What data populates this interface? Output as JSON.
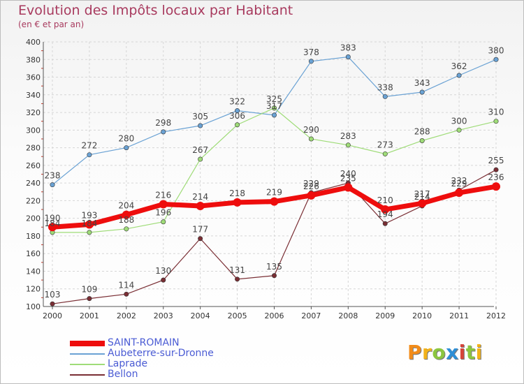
{
  "title": "Evolution des Impôts locaux par Habitant",
  "subtitle": "(en € et par an)",
  "logo": {
    "text": "Proxiti",
    "letters": [
      {
        "ch": "P",
        "color": "#f28c1a"
      },
      {
        "ch": "r",
        "color": "#f2b21a"
      },
      {
        "ch": "o",
        "color": "#8cc63f"
      },
      {
        "ch": "x",
        "color": "#2e8fd6"
      },
      {
        "ch": "i",
        "color": "#d6453a"
      },
      {
        "ch": "t",
        "color": "#8cc63f"
      },
      {
        "ch": "i",
        "color": "#f2b21a"
      }
    ]
  },
  "chart_data": {
    "type": "line",
    "x": [
      "2000",
      "2001",
      "2002",
      "2003",
      "2004",
      "2005",
      "2006",
      "2007",
      "2008",
      "2009",
      "2010",
      "2011",
      "2012"
    ],
    "ylim": [
      100,
      400
    ],
    "ytick_step": 20,
    "grid": true,
    "legend_position": "bottom-left",
    "series": [
      {
        "name": "Aubeterre-sur-Dronne",
        "color": "#6aa2d4",
        "width": 1.2,
        "values": [
          238,
          272,
          280,
          298,
          305,
          322,
          317,
          378,
          383,
          338,
          343,
          362,
          380
        ],
        "labels": [
          "238",
          "272",
          "280",
          "298",
          "305",
          "322",
          "317",
          "378",
          "383",
          "338",
          "343",
          "362",
          "380"
        ]
      },
      {
        "name": "Laprade",
        "color": "#9fdc78",
        "width": 1.2,
        "values": [
          184,
          184,
          188,
          196,
          267,
          306,
          325,
          290,
          283,
          273,
          288,
          300,
          310
        ],
        "labels": [
          "184",
          "184",
          "188",
          "196",
          "267",
          "306",
          "325",
          "290",
          "283",
          "273",
          "288",
          "300",
          "310"
        ]
      },
      {
        "name": "Bellon",
        "color": "#7a2e34",
        "width": 1.2,
        "values": [
          103,
          109,
          114,
          130,
          177,
          131,
          135,
          229,
          240,
          194,
          214,
          232,
          255
        ],
        "labels": [
          "103",
          "109",
          "114",
          "130",
          "177",
          "131",
          "135",
          "229",
          "240",
          "194",
          "214",
          "232",
          "255"
        ]
      },
      {
        "name": "SAINT-ROMAIN",
        "color": "#ee0d0d",
        "width": 7,
        "values": [
          190,
          193,
          204,
          216,
          214,
          218,
          219,
          226,
          235,
          210,
          217,
          229,
          236
        ],
        "labels": [
          "190",
          "193",
          "204",
          "216",
          "214",
          "218",
          "219",
          "226",
          "235",
          "210",
          "217",
          "229",
          "236"
        ]
      }
    ],
    "legend_order": [
      "SAINT-ROMAIN",
      "Aubeterre-sur-Dronne",
      "Laprade",
      "Bellon"
    ]
  }
}
